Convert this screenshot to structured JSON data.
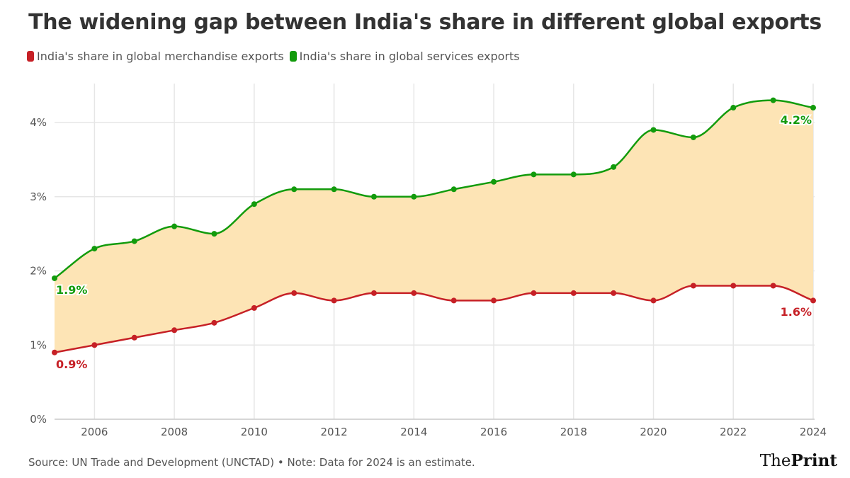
{
  "chart_data": {
    "type": "area",
    "title": "The widening gap between India's share in different global exports",
    "x": [
      2005,
      2006,
      2007,
      2008,
      2009,
      2010,
      2011,
      2012,
      2013,
      2014,
      2015,
      2016,
      2017,
      2018,
      2019,
      2020,
      2021,
      2022,
      2023,
      2024
    ],
    "series": [
      {
        "name": "India's share in global merchandise exports",
        "color": "#c62026",
        "values": [
          0.9,
          1.0,
          1.1,
          1.2,
          1.3,
          1.5,
          1.7,
          1.6,
          1.7,
          1.7,
          1.6,
          1.6,
          1.7,
          1.7,
          1.7,
          1.6,
          1.8,
          1.8,
          1.8,
          1.6
        ]
      },
      {
        "name": "India's share in global services exports",
        "color": "#129b0c",
        "values": [
          1.9,
          2.3,
          2.4,
          2.6,
          2.5,
          2.9,
          3.1,
          3.1,
          3.0,
          3.0,
          3.1,
          3.2,
          3.3,
          3.3,
          3.4,
          3.9,
          3.8,
          4.2,
          4.3,
          4.2
        ]
      }
    ],
    "gap_fill_color": "#fde4b5",
    "ylim": [
      0,
      4.5
    ],
    "yticks": [
      0,
      1,
      2,
      3,
      4
    ],
    "ytick_labels": [
      "0%",
      "1%",
      "2%",
      "3%",
      "4%"
    ],
    "xticks": [
      2006,
      2008,
      2010,
      2012,
      2014,
      2016,
      2018,
      2020,
      2022,
      2024
    ],
    "xtick_labels": [
      "2006",
      "2008",
      "2010",
      "2012",
      "2014",
      "2016",
      "2018",
      "2020",
      "2022",
      "2024"
    ],
    "data_labels": {
      "merch_start": "0.9%",
      "merch_end": "1.6%",
      "serv_start": "1.9%",
      "serv_end": "4.2%"
    },
    "grid": true,
    "legend_position": "top-left",
    "xlabel": "",
    "ylabel": ""
  },
  "footer": {
    "source": "Source: UN Trade and Development (UNCTAD) • Note: Data for 2024 is an estimate.",
    "logo_text": "ThePrint"
  }
}
